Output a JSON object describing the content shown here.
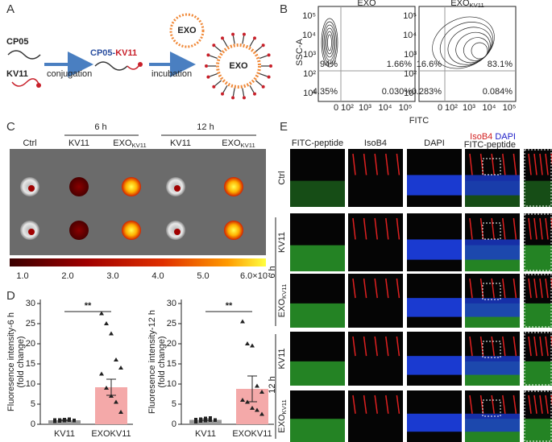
{
  "panel_a": {
    "label": "A",
    "exo": "EXO",
    "cp05": "CP05",
    "kv11": "KV11",
    "conjugation": "conjugation",
    "conjugate": {
      "cp05": "CP05",
      "dash": "-",
      "kv11": "KV11"
    },
    "incubation": "incubation",
    "complex": "EXO"
  },
  "panel_b": {
    "label": "B",
    "y_label": "SSC-A",
    "x_label": "FITC",
    "y_ticks": [
      "10⁵",
      "10⁴",
      "10³",
      "10²",
      "10¹"
    ],
    "x_ticks": [
      "0",
      "10²",
      "10³",
      "10⁴",
      "10⁵"
    ],
    "plots": [
      {
        "title": {
          "main": "EXO"
        },
        "quadrants": [
          "94%",
          "1.66%",
          "4.35%",
          "0.030%"
        ]
      },
      {
        "title": {
          "main": "EXO",
          "sub": "KV11"
        },
        "quadrants": [
          "16.6%",
          "83.1%",
          "0.283%",
          "0.084%"
        ]
      }
    ]
  },
  "panel_c": {
    "label": "C",
    "groups": [
      "6 h",
      "12 h"
    ],
    "columns": [
      {
        "main": "Ctrl"
      },
      {
        "main": "KV11"
      },
      {
        "main": "EXO",
        "sub": "KV11"
      },
      {
        "main": "KV11"
      },
      {
        "main": "EXO",
        "sub": "KV11"
      }
    ],
    "colorbar_ticks": [
      "1.0",
      "2.0",
      "3.0",
      "4.0",
      "5.0",
      "6.0×10⁷"
    ]
  },
  "panel_d": {
    "label": "D"
  },
  "chart_data": [
    {
      "type": "bar",
      "y_label": [
        "Fluoresence intensity-6 h",
        "(fold change)"
      ],
      "categories": [
        "KV11",
        "EXOKV11"
      ],
      "values": [
        1.0,
        9.2
      ],
      "errors": [
        0.15,
        2.0
      ],
      "colors": [
        "#9a9a9a",
        "#f4a9a9"
      ],
      "points": [
        [
          0.7,
          0.8,
          0.9,
          1.0,
          1.0,
          1.1,
          1.1,
          1.2,
          1.3,
          0.9
        ],
        [
          27.5,
          25.0,
          22.5,
          16.0,
          14.0,
          12.5,
          9.0,
          7.0,
          5.5,
          3.0
        ]
      ],
      "significance": "**",
      "ylim": [
        0,
        31
      ],
      "yticks": [
        0,
        5,
        10,
        15,
        20,
        25,
        30
      ]
    },
    {
      "type": "bar",
      "y_label": [
        "Fluoresence intensity-12 h",
        "(fold change)"
      ],
      "categories": [
        "KV11",
        "EXOKV11"
      ],
      "values": [
        1.1,
        8.8
      ],
      "errors": [
        0.2,
        3.2
      ],
      "colors": [
        "#9a9a9a",
        "#f4a9a9"
      ],
      "points": [
        [
          0.6,
          0.8,
          0.9,
          1.0,
          1.1,
          1.2,
          1.3,
          1.5,
          1.6,
          1.0
        ],
        [
          25.5,
          20.0,
          19.5,
          9.5,
          8.0,
          6.0,
          5.5,
          4.0,
          3.5,
          2.5
        ]
      ],
      "significance": "**",
      "ylim": [
        0,
        31
      ],
      "yticks": [
        0,
        5,
        10,
        15,
        20,
        25,
        30
      ]
    }
  ],
  "panel_e": {
    "label": "E",
    "headers": [
      "FITC-peptide",
      "IsoB4",
      "DAPI"
    ],
    "merge_header": [
      "IsoB4",
      "DAPI",
      "FITC-peptide"
    ],
    "rows": [
      {
        "main": "Ctrl"
      },
      {
        "main": "KV11"
      },
      {
        "main": "EXO",
        "sub": "KV11"
      },
      {
        "main": "KV11"
      },
      {
        "main": "EXO",
        "sub": "KV11"
      }
    ],
    "groups": [
      "6 h",
      "12 h"
    ]
  }
}
